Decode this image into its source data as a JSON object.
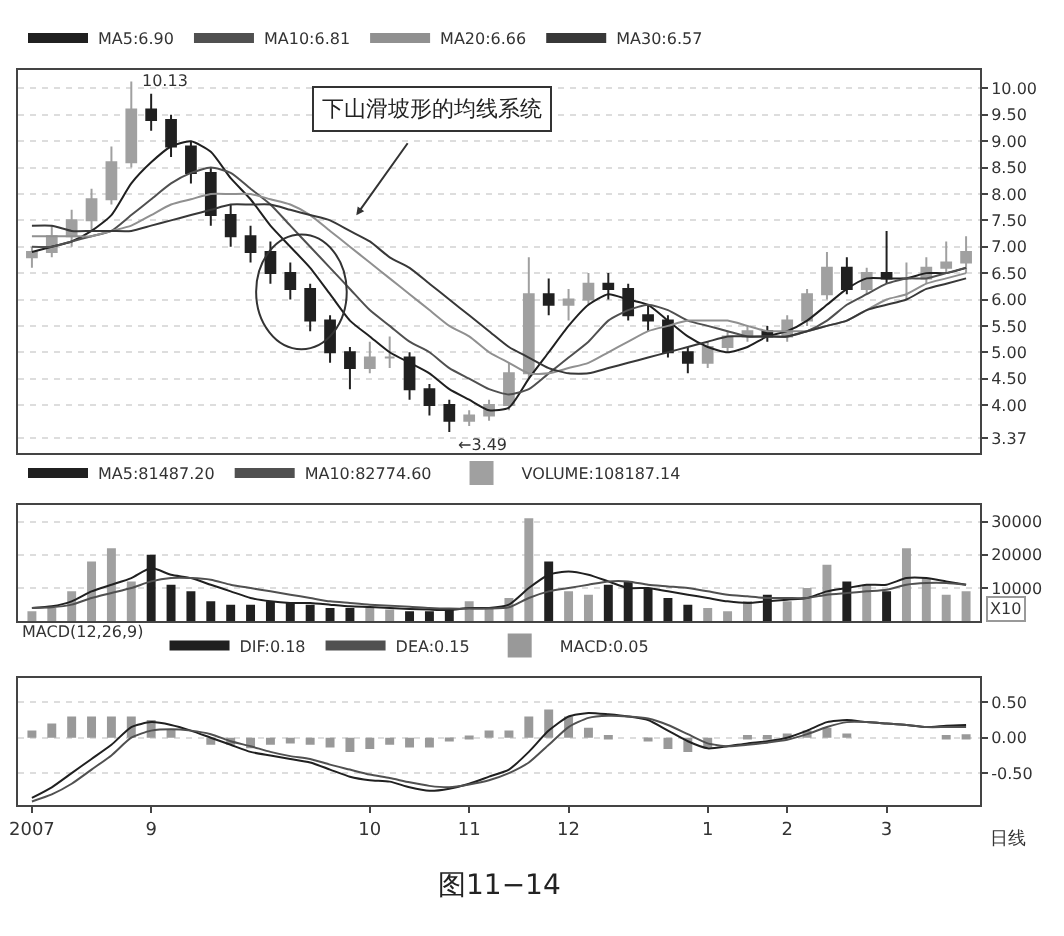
{
  "chart_data": [
    {
      "type": "candlestick",
      "categories": [
        null,
        null,
        null,
        null,
        null,
        null,
        null,
        null,
        null,
        null,
        null,
        null,
        null,
        null,
        null,
        null,
        null,
        null,
        null,
        null,
        null,
        null,
        null,
        null,
        null,
        null,
        null,
        null,
        null,
        null,
        null,
        null,
        null,
        null,
        null,
        null,
        null,
        null,
        null,
        null,
        null,
        null,
        null,
        null,
        null,
        null,
        null,
        null
      ],
      "ohlc": [
        [
          6.8,
          7.0,
          6.6,
          6.9
        ],
        [
          6.9,
          7.4,
          6.8,
          7.2
        ],
        [
          7.2,
          7.7,
          7.0,
          7.5
        ],
        [
          7.5,
          8.1,
          7.3,
          7.9
        ],
        [
          7.9,
          8.9,
          7.8,
          8.6
        ],
        [
          8.6,
          10.13,
          8.5,
          9.6
        ],
        [
          9.6,
          9.9,
          9.2,
          9.4
        ],
        [
          9.4,
          9.5,
          8.7,
          8.9
        ],
        [
          8.9,
          9.0,
          8.2,
          8.4
        ],
        [
          8.4,
          8.5,
          7.4,
          7.6
        ],
        [
          7.6,
          7.8,
          7.0,
          7.2
        ],
        [
          7.2,
          7.4,
          6.7,
          6.9
        ],
        [
          6.9,
          7.1,
          6.3,
          6.5
        ],
        [
          6.5,
          6.7,
          6.0,
          6.2
        ],
        [
          6.2,
          6.3,
          5.4,
          5.6
        ],
        [
          5.6,
          5.7,
          4.8,
          5.0
        ],
        [
          5.0,
          5.1,
          4.3,
          4.7
        ],
        [
          4.7,
          5.2,
          4.6,
          4.9
        ],
        [
          4.9,
          5.3,
          4.7,
          4.9
        ],
        [
          4.9,
          5.0,
          4.1,
          4.3
        ],
        [
          4.3,
          4.4,
          3.8,
          4.0
        ],
        [
          4.0,
          4.1,
          3.49,
          3.7
        ],
        [
          3.7,
          3.9,
          3.6,
          3.8
        ],
        [
          3.8,
          4.1,
          3.7,
          4.0
        ],
        [
          4.0,
          4.8,
          3.9,
          4.6
        ],
        [
          4.6,
          6.8,
          4.5,
          6.1
        ],
        [
          6.1,
          6.4,
          5.7,
          5.9
        ],
        [
          5.9,
          6.2,
          5.6,
          6.0
        ],
        [
          6.0,
          6.5,
          5.9,
          6.3
        ],
        [
          6.3,
          6.5,
          6.0,
          6.2
        ],
        [
          6.2,
          6.3,
          5.6,
          5.7
        ],
        [
          5.7,
          5.9,
          5.4,
          5.6
        ],
        [
          5.6,
          5.7,
          4.9,
          5.0
        ],
        [
          5.0,
          5.1,
          4.6,
          4.8
        ],
        [
          4.8,
          5.2,
          4.7,
          5.1
        ],
        [
          5.1,
          5.4,
          5.0,
          5.3
        ],
        [
          5.3,
          5.5,
          5.2,
          5.4
        ],
        [
          5.4,
          5.5,
          5.2,
          5.3
        ],
        [
          5.3,
          5.7,
          5.2,
          5.6
        ],
        [
          5.6,
          6.2,
          5.5,
          6.1
        ],
        [
          6.1,
          6.9,
          6.0,
          6.6
        ],
        [
          6.6,
          6.8,
          6.1,
          6.2
        ],
        [
          6.2,
          6.6,
          6.1,
          6.5
        ],
        [
          6.5,
          7.3,
          6.3,
          6.4
        ],
        [
          6.4,
          6.7,
          6.0,
          6.4
        ],
        [
          6.4,
          6.8,
          6.3,
          6.6
        ],
        [
          6.6,
          7.1,
          6.5,
          6.7
        ],
        [
          6.7,
          7.2,
          6.5,
          6.9
        ]
      ],
      "colors": [
        "#a0a0a0",
        "#a0a0a0",
        "#a0a0a0",
        "#a0a0a0",
        "#a0a0a0",
        "#a0a0a0",
        "#202020",
        "#202020",
        "#202020",
        "#202020",
        "#202020",
        "#202020",
        "#202020",
        "#202020",
        "#202020",
        "#202020",
        "#202020",
        "#a0a0a0",
        "#a0a0a0",
        "#202020",
        "#202020",
        "#202020",
        "#a0a0a0",
        "#a0a0a0",
        "#a0a0a0",
        "#a0a0a0",
        "#202020",
        "#a0a0a0",
        "#a0a0a0",
        "#202020",
        "#202020",
        "#202020",
        "#202020",
        "#202020",
        "#a0a0a0",
        "#a0a0a0",
        "#a0a0a0",
        "#202020",
        "#a0a0a0",
        "#a0a0a0",
        "#a0a0a0",
        "#202020",
        "#a0a0a0",
        "#202020",
        "#a0a0a0",
        "#a0a0a0",
        "#a0a0a0",
        "#a0a0a0"
      ],
      "series": [
        {
          "type": "line",
          "name": "MA5:6.90",
          "color": "#202020",
          "values": [
            6.9,
            7.0,
            7.1,
            7.3,
            7.6,
            8.2,
            8.6,
            8.9,
            9.0,
            8.8,
            8.3,
            7.9,
            7.4,
            7.0,
            6.6,
            6.1,
            5.6,
            5.3,
            5.0,
            4.8,
            4.6,
            4.3,
            4.1,
            3.9,
            3.95,
            4.5,
            5.0,
            5.5,
            5.9,
            6.1,
            6.0,
            5.9,
            5.6,
            5.3,
            5.1,
            5.0,
            5.1,
            5.3,
            5.4,
            5.6,
            5.9,
            6.2,
            6.4,
            6.4,
            6.4,
            6.5,
            6.5,
            6.6
          ]
        },
        {
          "type": "line",
          "name": "MA10:6.81",
          "color": "#505050",
          "values": [
            7.0,
            7.0,
            7.1,
            7.2,
            7.3,
            7.6,
            7.9,
            8.2,
            8.4,
            8.5,
            8.4,
            8.1,
            7.8,
            7.4,
            7.0,
            6.6,
            6.2,
            5.8,
            5.5,
            5.2,
            5.0,
            4.7,
            4.5,
            4.3,
            4.2,
            4.3,
            4.6,
            4.9,
            5.2,
            5.6,
            5.8,
            5.9,
            5.8,
            5.6,
            5.5,
            5.4,
            5.3,
            5.3,
            5.3,
            5.4,
            5.6,
            5.9,
            6.1,
            6.3,
            6.4,
            6.4,
            6.5,
            6.6
          ]
        },
        {
          "type": "line",
          "name": "MA20:6.66",
          "color": "#909090",
          "values": [
            7.2,
            7.2,
            7.2,
            7.2,
            7.3,
            7.4,
            7.6,
            7.8,
            7.9,
            8.0,
            8.0,
            8.0,
            7.9,
            7.8,
            7.6,
            7.3,
            7.0,
            6.7,
            6.4,
            6.1,
            5.8,
            5.5,
            5.3,
            5.0,
            4.8,
            4.6,
            4.6,
            4.7,
            4.8,
            5.0,
            5.2,
            5.4,
            5.5,
            5.6,
            5.6,
            5.6,
            5.5,
            5.4,
            5.4,
            5.4,
            5.5,
            5.6,
            5.8,
            6.0,
            6.1,
            6.3,
            6.4,
            6.5
          ]
        },
        {
          "type": "line",
          "name": "MA30:6.57",
          "color": "#383838",
          "values": [
            7.4,
            7.4,
            7.3,
            7.3,
            7.3,
            7.3,
            7.4,
            7.5,
            7.6,
            7.7,
            7.8,
            7.8,
            7.8,
            7.7,
            7.6,
            7.5,
            7.3,
            7.1,
            6.8,
            6.6,
            6.3,
            6.0,
            5.7,
            5.4,
            5.1,
            4.9,
            4.7,
            4.6,
            4.6,
            4.7,
            4.8,
            4.9,
            5.0,
            5.1,
            5.2,
            5.3,
            5.3,
            5.3,
            5.3,
            5.4,
            5.5,
            5.6,
            5.8,
            5.9,
            6.0,
            6.2,
            6.3,
            6.4
          ]
        }
      ],
      "ylim": [
        3.1,
        10.35
      ],
      "yticks": [
        {
          "value": 3.37,
          "label": "3.37"
        },
        {
          "value": 4,
          "label": "4.00"
        },
        {
          "value": 4.5,
          "label": "4.50"
        },
        {
          "value": 5,
          "label": "5.00"
        },
        {
          "value": 5.5,
          "label": "5.50"
        },
        {
          "value": 6,
          "label": "6.00"
        },
        {
          "value": 6.5,
          "label": "6.50"
        },
        {
          "value": 7,
          "label": "7.00"
        },
        {
          "value": 7.5,
          "label": "7.50"
        },
        {
          "value": 8,
          "label": "8.00"
        },
        {
          "value": 8.5,
          "label": "8.50"
        },
        {
          "value": 9,
          "label": "9.00"
        },
        {
          "value": 9.5,
          "label": "9.50"
        },
        {
          "value": 10,
          "label": "10.00"
        }
      ],
      "grid": "y",
      "legend": "top left",
      "tick_labels": "y",
      "annotations": [
        "10.13",
        "←3.49",
        "下山滑坡形的均线系统"
      ]
    },
    {
      "type": "bar",
      "categories": [
        null,
        null,
        null,
        null,
        null,
        null,
        null,
        null,
        null,
        null,
        null,
        null,
        null,
        null,
        null,
        null,
        null,
        null,
        null,
        null,
        null,
        null,
        null,
        null,
        null,
        null,
        null,
        null,
        null,
        null,
        null,
        null,
        null,
        null,
        null,
        null,
        null,
        null,
        null,
        null,
        null,
        null,
        null,
        null,
        null,
        null,
        null,
        null
      ],
      "series": [
        {
          "name": "VOLUME:108187.14",
          "colors": [
            "#a0a0a0",
            "#a0a0a0",
            "#a0a0a0",
            "#a0a0a0",
            "#a0a0a0",
            "#a0a0a0",
            "#202020",
            "#202020",
            "#202020",
            "#202020",
            "#202020",
            "#202020",
            "#202020",
            "#202020",
            "#202020",
            "#202020",
            "#202020",
            "#a0a0a0",
            "#a0a0a0",
            "#202020",
            "#202020",
            "#202020",
            "#a0a0a0",
            "#a0a0a0",
            "#a0a0a0",
            "#a0a0a0",
            "#202020",
            "#a0a0a0",
            "#a0a0a0",
            "#202020",
            "#202020",
            "#202020",
            "#202020",
            "#202020",
            "#a0a0a0",
            "#a0a0a0",
            "#a0a0a0",
            "#202020",
            "#a0a0a0",
            "#a0a0a0",
            "#a0a0a0",
            "#202020",
            "#a0a0a0",
            "#202020",
            "#a0a0a0",
            "#a0a0a0",
            "#a0a0a0",
            "#a0a0a0"
          ],
          "values": [
            3000,
            4000,
            9000,
            18000,
            22000,
            12000,
            20000,
            11000,
            9000,
            6000,
            5000,
            5000,
            6000,
            5500,
            5000,
            4000,
            4000,
            4000,
            3500,
            3000,
            3000,
            3500,
            6000,
            4000,
            7000,
            31000,
            18000,
            9000,
            8000,
            11000,
            12000,
            10000,
            7000,
            5000,
            4000,
            3000,
            6000,
            8000,
            6000,
            10000,
            17000,
            12000,
            11000,
            9000,
            22000,
            13000,
            8000,
            9000
          ]
        },
        {
          "type": "line",
          "name": "MA5:81487.20",
          "color": "#202020",
          "values": [
            4000,
            4500,
            6000,
            9000,
            11000,
            13000,
            16000,
            14000,
            13000,
            11000,
            9000,
            7000,
            6000,
            5500,
            5500,
            5000,
            4500,
            4300,
            4000,
            3700,
            3500,
            3400,
            4000,
            4000,
            5000,
            10000,
            14000,
            15000,
            14000,
            12000,
            10000,
            10000,
            9000,
            8000,
            7000,
            6000,
            5500,
            6000,
            6500,
            7000,
            9000,
            10000,
            11000,
            11000,
            13000,
            13000,
            12000,
            11000
          ]
        },
        {
          "type": "line",
          "name": "MA10:82774.60",
          "color": "#505050",
          "values": [
            4000,
            4200,
            5000,
            7000,
            8500,
            10000,
            12000,
            13000,
            13000,
            12500,
            11000,
            10000,
            9000,
            8000,
            7000,
            6000,
            5500,
            5000,
            4700,
            4400,
            4000,
            3800,
            3800,
            3800,
            4200,
            7000,
            9000,
            10000,
            11000,
            12000,
            12000,
            11000,
            10500,
            10000,
            9000,
            8000,
            7500,
            7000,
            7000,
            7000,
            8000,
            8500,
            9000,
            9500,
            11000,
            11500,
            11500,
            11000
          ]
        }
      ],
      "ylim": [
        0,
        35000
      ],
      "yticks": [
        10000,
        20000,
        30000
      ],
      "grid": "y",
      "legend": "top left",
      "tick_labels": "y",
      "annotations": [
        "X10"
      ]
    },
    {
      "type": "line",
      "title": "MACD(12,26,9)",
      "categories": [
        "2007",
        null,
        null,
        null,
        null,
        null,
        "9",
        null,
        null,
        null,
        null,
        null,
        null,
        null,
        null,
        null,
        null,
        "10",
        null,
        null,
        null,
        null,
        "11",
        null,
        null,
        null,
        null,
        "12",
        null,
        null,
        null,
        null,
        null,
        null,
        "1",
        null,
        null,
        null,
        "2",
        null,
        null,
        null,
        null,
        "3",
        null,
        null,
        null,
        null
      ],
      "series": [
        {
          "name": "DIF:0.18",
          "color": "#202020",
          "values": [
            -0.85,
            -0.7,
            -0.5,
            -0.3,
            -0.1,
            0.15,
            0.22,
            0.18,
            0.1,
            0.0,
            -0.1,
            -0.2,
            -0.25,
            -0.3,
            -0.35,
            -0.45,
            -0.55,
            -0.6,
            -0.62,
            -0.7,
            -0.75,
            -0.72,
            -0.65,
            -0.55,
            -0.45,
            -0.2,
            0.1,
            0.3,
            0.35,
            0.33,
            0.3,
            0.25,
            0.1,
            -0.05,
            -0.15,
            -0.12,
            -0.08,
            -0.05,
            0.0,
            0.1,
            0.22,
            0.25,
            0.22,
            0.2,
            0.18,
            0.15,
            0.17,
            0.18
          ]
        },
        {
          "name": "DEA:0.15",
          "color": "#505050",
          "values": [
            -0.9,
            -0.8,
            -0.65,
            -0.45,
            -0.25,
            0.0,
            0.1,
            0.12,
            0.1,
            0.05,
            -0.05,
            -0.12,
            -0.2,
            -0.26,
            -0.3,
            -0.38,
            -0.45,
            -0.52,
            -0.57,
            -0.63,
            -0.68,
            -0.7,
            -0.66,
            -0.6,
            -0.5,
            -0.35,
            -0.1,
            0.15,
            0.28,
            0.31,
            0.3,
            0.27,
            0.18,
            0.05,
            -0.08,
            -0.12,
            -0.1,
            -0.07,
            -0.03,
            0.05,
            0.15,
            0.22,
            0.22,
            0.2,
            0.18,
            0.15,
            0.15,
            0.15
          ]
        },
        {
          "type": "bar",
          "name": "MACD:0.05",
          "color": "#999999",
          "values": [
            0.1,
            0.2,
            0.3,
            0.3,
            0.3,
            0.3,
            0.25,
            0.12,
            0.0,
            -0.1,
            -0.1,
            -0.15,
            -0.1,
            -0.08,
            -0.1,
            -0.14,
            -0.2,
            -0.16,
            -0.1,
            -0.14,
            -0.14,
            -0.04,
            0.02,
            0.1,
            0.1,
            0.3,
            0.4,
            0.3,
            0.14,
            0.04,
            0.0,
            -0.04,
            -0.16,
            -0.2,
            -0.14,
            0.0,
            0.04,
            0.04,
            0.06,
            0.1,
            0.14,
            0.06,
            0.0,
            0.0,
            0.0,
            0.0,
            0.04,
            0.05
          ]
        }
      ],
      "ylim": [
        -0.95,
        0.85
      ],
      "yticks": [
        {
          "value": -0.5,
          "label": "-0.50"
        },
        {
          "value": 0,
          "label": "0.00"
        },
        {
          "value": 0.5,
          "label": "0.50"
        }
      ],
      "grid": "y",
      "legend": "top left",
      "annotations": [
        "日线",
        "图11−14"
      ]
    }
  ]
}
